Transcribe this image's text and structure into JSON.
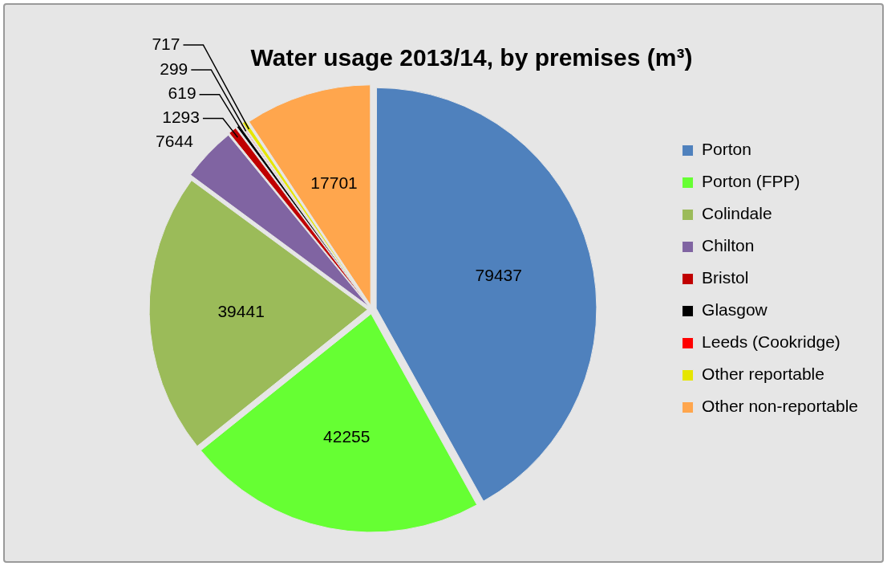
{
  "chart_data": {
    "type": "pie",
    "title": "Water usage 2013/14, by premises (m³)",
    "categories": [
      "Porton",
      "Porton (FPP)",
      "Colindale",
      "Chilton",
      "Bristol",
      "Glasgow",
      "Leeds (Cookridge)",
      "Other reportable",
      "Other non-reportable"
    ],
    "values": [
      79437,
      42255,
      39441,
      7644,
      1293,
      619,
      299,
      717,
      17701
    ],
    "colors": [
      "#4f81bd",
      "#66ff33",
      "#9bbb59",
      "#8064a2",
      "#c00000",
      "#000000",
      "#ff0000",
      "#e6e600",
      "#ffa64d"
    ],
    "data_labels": true,
    "legend": "right"
  }
}
